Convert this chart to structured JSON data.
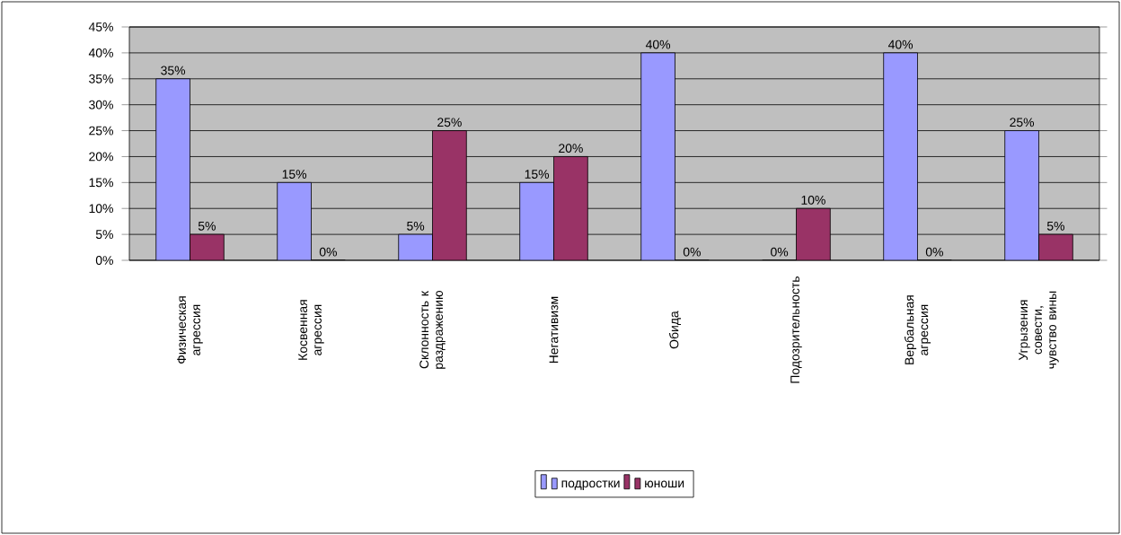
{
  "chart_data": {
    "type": "bar",
    "categories": [
      "Физическая агрессия",
      "Косвенная агрессия",
      "Склонность к раздражению",
      "Негативизм",
      "Обида",
      "Подозрительность",
      "Вербальная агрессия",
      "Угрызения совести, чувство вины"
    ],
    "series": [
      {
        "name": "подростки",
        "color": "#9999ff",
        "values": [
          35,
          15,
          5,
          15,
          40,
          0,
          40,
          25
        ],
        "value_labels": [
          "35%",
          "15%",
          "5%",
          "15%",
          "40%",
          "0%",
          "40%",
          "25%"
        ]
      },
      {
        "name": "юноши",
        "color": "#993366",
        "values": [
          5,
          0,
          25,
          20,
          0,
          10,
          0,
          5
        ],
        "value_labels": [
          "5%",
          "0%",
          "25%",
          "20%",
          "0%",
          "10%",
          "0%",
          "5%"
        ]
      }
    ],
    "ylim": [
      0,
      45
    ],
    "yticks": [
      {
        "value": 0,
        "label": "0%"
      },
      {
        "value": 5,
        "label": "5%"
      },
      {
        "value": 10,
        "label": "10%"
      },
      {
        "value": 15,
        "label": "15%"
      },
      {
        "value": 20,
        "label": "20%"
      },
      {
        "value": 25,
        "label": "25%"
      },
      {
        "value": 30,
        "label": "30%"
      },
      {
        "value": 35,
        "label": "35%"
      },
      {
        "value": 40,
        "label": "40%"
      },
      {
        "value": 45,
        "label": "45%"
      }
    ],
    "grid": "y",
    "legend": "bottom"
  }
}
